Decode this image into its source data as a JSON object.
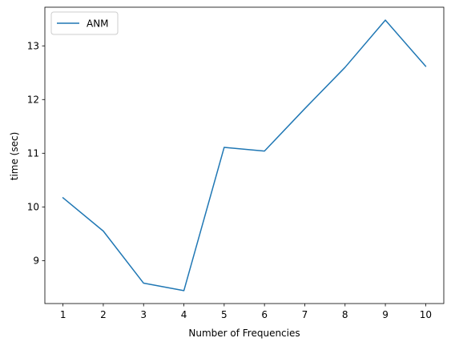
{
  "chart_data": {
    "type": "line",
    "title": "",
    "xlabel": "Number of Frequencies",
    "ylabel": "time (sec)",
    "x": [
      1,
      2,
      3,
      4,
      5,
      6,
      7,
      8,
      9,
      10
    ],
    "series": [
      {
        "name": "ANM",
        "color": "#1f77b4",
        "values": [
          10.17,
          9.55,
          8.58,
          8.44,
          11.11,
          11.04,
          11.83,
          12.6,
          13.48,
          12.62
        ]
      }
    ],
    "xlim": [
      0.55,
      10.45
    ],
    "ylim": [
      8.2,
      13.72
    ],
    "xticks": [
      1,
      2,
      3,
      4,
      5,
      6,
      7,
      8,
      9,
      10
    ],
    "yticks": [
      9,
      10,
      11,
      12,
      13
    ],
    "grid": false,
    "legend_position": "top-left"
  }
}
